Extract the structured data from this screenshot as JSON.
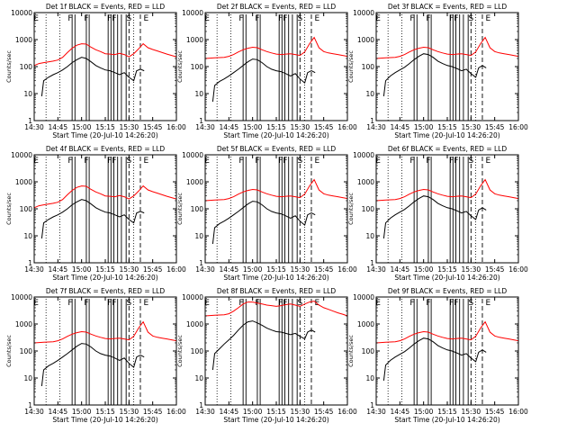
{
  "chart_data": [
    {
      "type": "line",
      "title": "Det 1f BLACK = Events, RED = LLD",
      "xlabel": "Start Time (20-Jul-10 14:26:20)",
      "ylabel": "Counts/sec",
      "yscale": "log",
      "ylim": [
        1,
        10000
      ],
      "xlim": [
        14.5,
        16.0
      ],
      "x_ticks": [
        "14:30",
        "14:45",
        "15:00",
        "15:15",
        "15:30",
        "15:45",
        "16:00"
      ],
      "y_ticks": [
        "1",
        "10",
        "100",
        "1000",
        "10000"
      ],
      "markers": [
        "E",
        "F",
        "F",
        "FF",
        "S",
        "E"
      ],
      "red_profile": "A",
      "black_profile": "A",
      "series": [
        {
          "name": "BLACK = Events",
          "color": "#000000"
        },
        {
          "name": "RED = LLD",
          "color": "#ff0000"
        }
      ]
    },
    {
      "type": "line",
      "title": "Det 2f BLACK = Events, RED = LLD",
      "xlabel": "Start Time (20-Jul-10 14:26:20)",
      "ylabel": "Counts/sec",
      "yscale": "log",
      "ylim": [
        1,
        10000
      ],
      "xlim": [
        14.5,
        16.0
      ],
      "x_ticks": [
        "14:30",
        "14:45",
        "15:00",
        "15:15",
        "15:30",
        "15:45",
        "16:00"
      ],
      "y_ticks": [
        "1",
        "10",
        "100",
        "1000",
        "10000"
      ],
      "markers": [
        "E",
        "F",
        "F",
        "FF",
        "S",
        "E"
      ],
      "red_profile": "B",
      "black_profile": "B",
      "series": [
        {
          "name": "BLACK = Events",
          "color": "#000000"
        },
        {
          "name": "RED = LLD",
          "color": "#ff0000"
        }
      ]
    },
    {
      "type": "line",
      "title": "Det 3f BLACK = Events, RED = LLD",
      "xlabel": "Start Time (20-Jul-10 14:26:20)",
      "ylabel": "Counts/sec",
      "yscale": "log",
      "ylim": [
        1,
        10000
      ],
      "xlim": [
        14.5,
        16.0
      ],
      "x_ticks": [
        "14:30",
        "14:45",
        "15:00",
        "15:15",
        "15:30",
        "15:45",
        "16:00"
      ],
      "y_ticks": [
        "1",
        "10",
        "100",
        "1000",
        "10000"
      ],
      "markers": [
        "E",
        "F",
        "F",
        "FF",
        "S",
        "E"
      ],
      "red_profile": "B",
      "black_profile": "C",
      "series": [
        {
          "name": "BLACK = Events",
          "color": "#000000"
        },
        {
          "name": "RED = LLD",
          "color": "#ff0000"
        }
      ]
    },
    {
      "type": "line",
      "title": "Det 4f BLACK = Events, RED = LLD",
      "xlabel": "Start Time (20-Jul-10 14:26:20)",
      "ylabel": "Counts/sec",
      "yscale": "log",
      "ylim": [
        1,
        10000
      ],
      "xlim": [
        14.5,
        16.0
      ],
      "x_ticks": [
        "14:30",
        "14:45",
        "15:00",
        "15:15",
        "15:30",
        "15:45",
        "16:00"
      ],
      "y_ticks": [
        "1",
        "10",
        "100",
        "1000",
        "10000"
      ],
      "markers": [
        "E",
        "F",
        "F",
        "FF",
        "S",
        "E"
      ],
      "red_profile": "A",
      "black_profile": "A",
      "series": [
        {
          "name": "BLACK = Events",
          "color": "#000000"
        },
        {
          "name": "RED = LLD",
          "color": "#ff0000"
        }
      ]
    },
    {
      "type": "line",
      "title": "Det 5f BLACK = Events, RED = LLD",
      "xlabel": "Start Time (20-Jul-10 14:26:20)",
      "ylabel": "Counts/sec",
      "yscale": "log",
      "ylim": [
        1,
        10000
      ],
      "xlim": [
        14.5,
        16.0
      ],
      "x_ticks": [
        "14:30",
        "14:45",
        "15:00",
        "15:15",
        "15:30",
        "15:45",
        "16:00"
      ],
      "y_ticks": [
        "1",
        "10",
        "100",
        "1000",
        "10000"
      ],
      "markers": [
        "E",
        "F",
        "F",
        "FF",
        "S",
        "E"
      ],
      "red_profile": "B",
      "black_profile": "B",
      "series": [
        {
          "name": "BLACK = Events",
          "color": "#000000"
        },
        {
          "name": "RED = LLD",
          "color": "#ff0000"
        }
      ]
    },
    {
      "type": "line",
      "title": "Det 6f BLACK = Events, RED = LLD",
      "xlabel": "Start Time (20-Jul-10 14:26:20)",
      "ylabel": "Counts/sec",
      "yscale": "log",
      "ylim": [
        1,
        10000
      ],
      "xlim": [
        14.5,
        16.0
      ],
      "x_ticks": [
        "14:30",
        "14:45",
        "15:00",
        "15:15",
        "15:30",
        "15:45",
        "16:00"
      ],
      "y_ticks": [
        "1",
        "10",
        "100",
        "1000",
        "10000"
      ],
      "markers": [
        "E",
        "F",
        "F",
        "FF",
        "S",
        "E"
      ],
      "red_profile": "B",
      "black_profile": "C",
      "series": [
        {
          "name": "BLACK = Events",
          "color": "#000000"
        },
        {
          "name": "RED = LLD",
          "color": "#ff0000"
        }
      ]
    },
    {
      "type": "line",
      "title": "Det 7f BLACK = Events, RED = LLD",
      "xlabel": "Start Time (20-Jul-10 14:26:20)",
      "ylabel": "Counts/sec",
      "yscale": "log",
      "ylim": [
        1,
        10000
      ],
      "xlim": [
        14.5,
        16.0
      ],
      "x_ticks": [
        "14:30",
        "14:45",
        "15:00",
        "15:15",
        "15:30",
        "15:45",
        "16:00"
      ],
      "y_ticks": [
        "1",
        "10",
        "100",
        "1000",
        "10000"
      ],
      "markers": [
        "E",
        "F",
        "F",
        "FF",
        "S",
        "E"
      ],
      "red_profile": "B",
      "black_profile": "B",
      "series": [
        {
          "name": "BLACK = Events",
          "color": "#000000"
        },
        {
          "name": "RED = LLD",
          "color": "#ff0000"
        }
      ]
    },
    {
      "type": "line",
      "title": "Det 8f BLACK = Events, RED = LLD",
      "xlabel": "Start Time (20-Jul-10 14:26:20)",
      "ylabel": "Counts/sec",
      "yscale": "log",
      "ylim": [
        1,
        10000
      ],
      "xlim": [
        14.5,
        16.0
      ],
      "x_ticks": [
        "14:30",
        "14:45",
        "15:00",
        "15:15",
        "15:30",
        "15:45",
        "16:00"
      ],
      "y_ticks": [
        "1",
        "10",
        "100",
        "1000",
        "10000"
      ],
      "markers": [
        "E",
        "F",
        "F",
        "FF",
        "S",
        "E"
      ],
      "red_profile": "C",
      "black_profile": "D",
      "series": [
        {
          "name": "BLACK = Events",
          "color": "#000000"
        },
        {
          "name": "RED = LLD",
          "color": "#ff0000"
        }
      ]
    },
    {
      "type": "line",
      "title": "Det 9f BLACK = Events, RED = LLD",
      "xlabel": "Start Time (20-Jul-10 14:26:20)",
      "ylabel": "Counts/sec",
      "yscale": "log",
      "ylim": [
        1,
        10000
      ],
      "xlim": [
        14.5,
        16.0
      ],
      "x_ticks": [
        "14:30",
        "14:45",
        "15:00",
        "15:15",
        "15:30",
        "15:45",
        "16:00"
      ],
      "y_ticks": [
        "1",
        "10",
        "100",
        "1000",
        "10000"
      ],
      "markers": [
        "E",
        "F",
        "F",
        "FF",
        "S",
        "E"
      ],
      "red_profile": "B",
      "black_profile": "C",
      "series": [
        {
          "name": "BLACK = Events",
          "color": "#000000"
        },
        {
          "name": "RED = LLD",
          "color": "#ff0000"
        }
      ]
    }
  ],
  "profiles": {
    "red": {
      "A": {
        "x": [
          14.5,
          14.55,
          14.6,
          14.65,
          14.7,
          14.75,
          14.8,
          14.85,
          14.9,
          14.95,
          15.0,
          15.05,
          15.1,
          15.15,
          15.2,
          15.25,
          15.3,
          15.35,
          15.4,
          15.45,
          15.5,
          15.55,
          15.6,
          15.65,
          15.7,
          15.75,
          15.8,
          15.85,
          15.9,
          15.95,
          16.0
        ],
        "y": [
          110,
          130,
          140,
          150,
          160,
          175,
          220,
          330,
          480,
          620,
          700,
          680,
          520,
          420,
          360,
          300,
          290,
          280,
          310,
          280,
          230,
          300,
          450,
          700,
          500,
          430,
          380,
          330,
          290,
          260,
          230
        ]
      },
      "B": {
        "x": [
          14.5,
          14.55,
          14.6,
          14.65,
          14.7,
          14.75,
          14.8,
          14.85,
          14.9,
          14.95,
          15.0,
          15.05,
          15.1,
          15.15,
          15.2,
          15.25,
          15.3,
          15.35,
          15.4,
          15.45,
          15.5,
          15.55,
          15.6,
          15.65,
          15.7,
          15.75,
          15.8,
          15.85,
          15.9,
          15.95,
          16.0
        ],
        "y": [
          200,
          205,
          210,
          215,
          220,
          240,
          280,
          350,
          420,
          480,
          520,
          500,
          420,
          360,
          320,
          290,
          280,
          290,
          300,
          280,
          260,
          350,
          700,
          1200,
          500,
          360,
          320,
          300,
          280,
          260,
          240
        ]
      },
      "C": {
        "x": [
          14.5,
          14.55,
          14.6,
          14.65,
          14.7,
          14.75,
          14.8,
          14.85,
          14.9,
          14.95,
          15.0,
          15.05,
          15.1,
          15.15,
          15.2,
          15.25,
          15.3,
          15.35,
          15.4,
          15.45,
          15.5,
          15.55,
          15.6,
          15.65,
          15.7,
          15.75,
          15.8,
          15.85,
          15.9,
          15.95,
          16.0
        ],
        "y": [
          2000,
          2050,
          2100,
          2150,
          2200,
          2400,
          3000,
          4000,
          5500,
          6500,
          6500,
          6000,
          5500,
          5000,
          4800,
          4500,
          4800,
          5200,
          5500,
          5000,
          4500,
          5500,
          6500,
          7000,
          5000,
          4000,
          3500,
          3000,
          2600,
          2300,
          2000
        ]
      }
    },
    "black": {
      "A": {
        "x": [
          14.58,
          14.6,
          14.65,
          14.7,
          14.75,
          14.8,
          14.85,
          14.9,
          14.95,
          15.0,
          15.05,
          15.1,
          15.15,
          15.2,
          15.25,
          15.3,
          15.35,
          15.4,
          15.45,
          15.5,
          15.55,
          15.58,
          15.62,
          15.66
        ],
        "y": [
          8,
          30,
          40,
          50,
          60,
          75,
          100,
          140,
          180,
          220,
          200,
          150,
          110,
          90,
          75,
          70,
          60,
          50,
          60,
          40,
          30,
          70,
          80,
          70
        ]
      },
      "B": {
        "x": [
          14.58,
          14.6,
          14.65,
          14.7,
          14.75,
          14.8,
          14.85,
          14.9,
          14.95,
          15.0,
          15.05,
          15.1,
          15.15,
          15.2,
          15.25,
          15.3,
          15.35,
          15.4,
          15.45,
          15.5,
          15.55,
          15.58,
          15.62,
          15.66
        ],
        "y": [
          5,
          20,
          28,
          35,
          45,
          60,
          80,
          110,
          150,
          190,
          180,
          140,
          100,
          80,
          70,
          65,
          55,
          45,
          55,
          35,
          25,
          60,
          70,
          60
        ]
      },
      "C": {
        "x": [
          14.58,
          14.6,
          14.65,
          14.7,
          14.75,
          14.8,
          14.85,
          14.9,
          14.95,
          15.0,
          15.05,
          15.1,
          15.15,
          15.2,
          15.25,
          15.3,
          15.35,
          15.4,
          15.45,
          15.5,
          15.55,
          15.58,
          15.62,
          15.66
        ],
        "y": [
          8,
          30,
          45,
          60,
          75,
          95,
          130,
          180,
          240,
          300,
          280,
          220,
          160,
          130,
          110,
          100,
          85,
          70,
          80,
          55,
          40,
          90,
          110,
          90
        ]
      },
      "D": {
        "x": [
          14.58,
          14.6,
          14.65,
          14.7,
          14.75,
          14.8,
          14.85,
          14.9,
          14.95,
          15.0,
          15.05,
          15.1,
          15.15,
          15.2,
          15.25,
          15.3,
          15.35,
          15.4,
          15.45,
          15.5,
          15.55,
          15.58,
          15.62,
          15.66
        ],
        "y": [
          20,
          80,
          120,
          180,
          260,
          380,
          600,
          900,
          1200,
          1300,
          1100,
          900,
          700,
          600,
          520,
          500,
          450,
          400,
          450,
          350,
          280,
          500,
          600,
          500
        ]
      }
    }
  },
  "event_lines": {
    "dotted": [
      14.625,
      14.77,
      15.55
    ],
    "solid": [
      14.9,
      14.93,
      15.05,
      15.08,
      15.28,
      15.31,
      15.34,
      15.38,
      15.42,
      15.47
    ],
    "dashed": [
      15.5,
      15.62
    ]
  }
}
